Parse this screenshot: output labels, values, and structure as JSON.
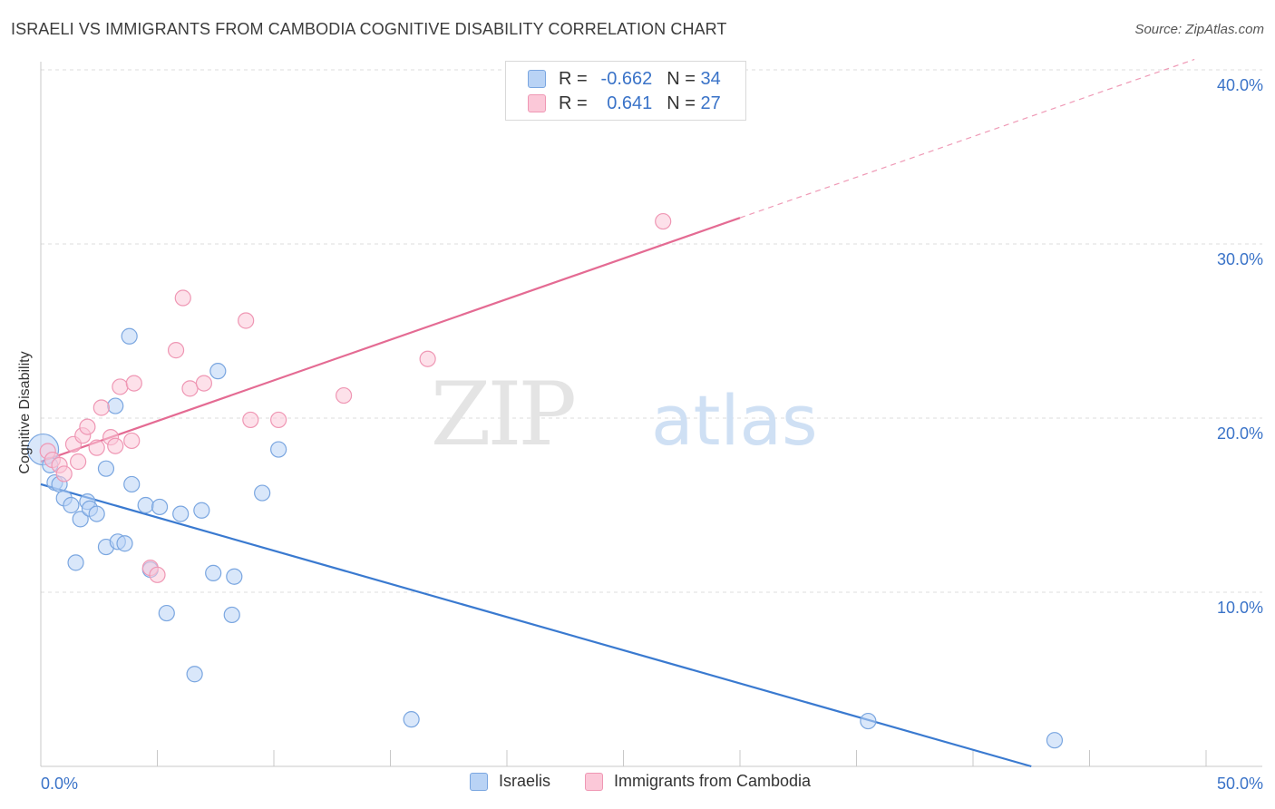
{
  "header": {
    "title": "ISRAELI VS IMMIGRANTS FROM CAMBODIA COGNITIVE DISABILITY CORRELATION CHART",
    "source": "Source: ZipAtlas.com"
  },
  "watermark": {
    "zip": "ZIP",
    "atlas": "atlas"
  },
  "legend": {
    "r_label": "R =",
    "n_label": "N =",
    "rows": [
      {
        "r": "-0.662",
        "n": "34",
        "fill": "#b9d3f5",
        "stroke": "#7aa6e0"
      },
      {
        "r": "0.641",
        "n": "27",
        "fill": "#fbc8d8",
        "stroke": "#ef97b4"
      }
    ]
  },
  "bottom_legend": {
    "items": [
      {
        "label": "Israelis",
        "fill": "#b9d3f5",
        "stroke": "#7aa6e0"
      },
      {
        "label": "Immigrants from Cambodia",
        "fill": "#fbc8d8",
        "stroke": "#ef97b4"
      }
    ]
  },
  "chart_data": {
    "type": "scatter",
    "title": "ISRAELI VS IMMIGRANTS FROM CAMBODIA COGNITIVE DISABILITY CORRELATION CHART",
    "xlabel": "",
    "ylabel": "Cognitive Disability",
    "xlim": [
      0,
      50
    ],
    "ylim": [
      0,
      40
    ],
    "x_tick_labels": [
      "0.0%",
      "50.0%"
    ],
    "y_ticks": [
      10,
      20,
      30,
      40
    ],
    "y_tick_labels": [
      "10.0%",
      "20.0%",
      "30.0%",
      "40.0%"
    ],
    "grid": true,
    "legend_position": "top-center",
    "colors": {
      "blue": "#3a73c8",
      "pink": "#e46b93",
      "axis_text": "#3a73c8"
    },
    "series": [
      {
        "name": "Israelis",
        "color": "#3a73c8",
        "points": [
          [
            0.1,
            18.2
          ],
          [
            0.4,
            17.3
          ],
          [
            0.6,
            16.3
          ],
          [
            0.8,
            16.2
          ],
          [
            1.0,
            15.4
          ],
          [
            1.3,
            15.0
          ],
          [
            1.5,
            11.7
          ],
          [
            1.7,
            14.2
          ],
          [
            2.0,
            15.2
          ],
          [
            2.1,
            14.8
          ],
          [
            2.4,
            14.5
          ],
          [
            2.8,
            17.1
          ],
          [
            2.8,
            12.6
          ],
          [
            3.2,
            20.7
          ],
          [
            3.3,
            12.9
          ],
          [
            3.6,
            12.8
          ],
          [
            3.8,
            24.7
          ],
          [
            3.9,
            16.2
          ],
          [
            4.5,
            15.0
          ],
          [
            4.7,
            11.3
          ],
          [
            5.1,
            14.9
          ],
          [
            5.4,
            8.8
          ],
          [
            6.0,
            14.5
          ],
          [
            6.6,
            5.3
          ],
          [
            6.9,
            14.7
          ],
          [
            7.4,
            11.1
          ],
          [
            7.6,
            22.7
          ],
          [
            8.2,
            8.7
          ],
          [
            8.3,
            10.9
          ],
          [
            9.5,
            15.7
          ],
          [
            10.2,
            18.2
          ],
          [
            15.9,
            2.7
          ],
          [
            35.5,
            2.6
          ],
          [
            43.5,
            1.5
          ]
        ],
        "trend": {
          "x": [
            0,
            42.5
          ],
          "y": [
            16.2,
            0.0
          ]
        }
      },
      {
        "name": "Immigrants from Cambodia",
        "color": "#e46b93",
        "points": [
          [
            0.3,
            18.1
          ],
          [
            0.5,
            17.6
          ],
          [
            0.8,
            17.3
          ],
          [
            1.0,
            16.8
          ],
          [
            1.4,
            18.5
          ],
          [
            1.6,
            17.5
          ],
          [
            1.8,
            19.0
          ],
          [
            2.0,
            19.5
          ],
          [
            2.4,
            18.3
          ],
          [
            2.6,
            20.6
          ],
          [
            3.0,
            18.9
          ],
          [
            3.2,
            18.4
          ],
          [
            3.4,
            21.8
          ],
          [
            3.9,
            18.7
          ],
          [
            4.0,
            22.0
          ],
          [
            4.7,
            11.4
          ],
          [
            5.0,
            11.0
          ],
          [
            5.8,
            23.9
          ],
          [
            6.1,
            26.9
          ],
          [
            6.4,
            21.7
          ],
          [
            7.0,
            22.0
          ],
          [
            8.8,
            25.6
          ],
          [
            9.0,
            19.9
          ],
          [
            10.2,
            19.9
          ],
          [
            13.0,
            21.3
          ],
          [
            16.6,
            23.4
          ],
          [
            26.7,
            31.3
          ]
        ],
        "trend": {
          "x": [
            0,
            30
          ],
          "y": [
            17.5,
            31.5
          ]
        },
        "trend_extension": {
          "x": [
            30,
            49.5
          ],
          "y": [
            31.5,
            40.6
          ]
        }
      }
    ]
  }
}
